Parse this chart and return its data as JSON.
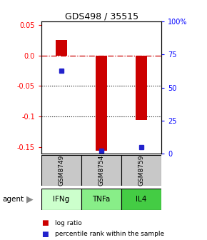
{
  "title": "GDS498 / 35515",
  "samples": [
    "GSM8749",
    "GSM8754",
    "GSM8759"
  ],
  "agents": [
    "IFNg",
    "TNFa",
    "IL4"
  ],
  "log_ratios": [
    0.025,
    -0.155,
    -0.105
  ],
  "percentile_ranks_pct": [
    63,
    2,
    5
  ],
  "ylim_left": [
    -0.16,
    0.055
  ],
  "left_ticks": [
    0.05,
    0.0,
    -0.05,
    -0.1,
    -0.15
  ],
  "right_ticks_pct": [
    100,
    75,
    50,
    25,
    0
  ],
  "right_tick_labels": [
    "100%",
    "75",
    "50",
    "25",
    "0"
  ],
  "bar_color": "#cc0000",
  "dot_color": "#2222cc",
  "zero_line_color": "#cc0000",
  "sample_box_color": "#c8c8c8",
  "agent_colors": [
    "#ccffcc",
    "#88ee88",
    "#44cc44"
  ],
  "legend_labels": [
    "log ratio",
    "percentile rank within the sample"
  ],
  "background_color": "#ffffff"
}
